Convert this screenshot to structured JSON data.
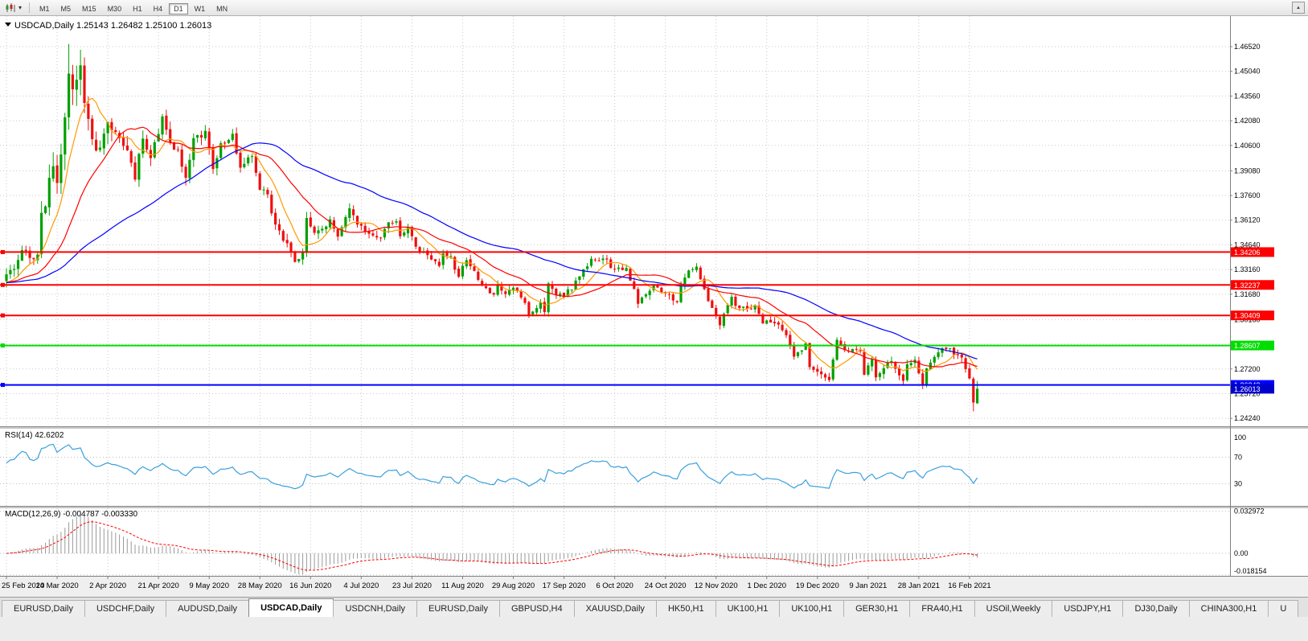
{
  "colors": {
    "up": "#00A000",
    "down": "#EE1010",
    "grid": "#C9C9C9",
    "rsi": "#3AA0DC",
    "macd_hist": "#9A9A9A",
    "macd_signal": "#FF0000",
    "hline_red": "#FF0000",
    "hline_green": "#00DD00",
    "hline_blue": "#0000FF",
    "current_price_tag": "#0000CC"
  },
  "toolbar": {
    "timeframes": [
      "M1",
      "M5",
      "M15",
      "M30",
      "H1",
      "H4",
      "D1",
      "W1",
      "MN"
    ],
    "active_timeframe": "D1"
  },
  "chart": {
    "header_text": "USDCAD,Daily 1.25143 1.26482 1.25100 1.26013",
    "symbol": "USDCAD",
    "timeframe": "Daily",
    "ohlc": {
      "open": "1.25143",
      "high": "1.26482",
      "low": "1.25100",
      "close": "1.26013"
    },
    "price_axis": [
      "1.46520",
      "1.45040",
      "1.43560",
      "1.42080",
      "1.40600",
      "1.39080",
      "1.37600",
      "1.36120",
      "1.34640",
      "1.33160",
      "1.31680",
      "1.30160",
      "1.28680",
      "1.27200",
      "1.25720",
      "1.24240"
    ],
    "hlines": [
      {
        "label": "1.34206",
        "value": 1.34206,
        "color_key": "hline_red"
      },
      {
        "label": "1.32237",
        "value": 1.32237,
        "color_key": "hline_red"
      },
      {
        "label": "1.30409",
        "value": 1.30409,
        "color_key": "hline_red"
      },
      {
        "label": "1.28607",
        "value": 1.28607,
        "color_key": "hline_green"
      },
      {
        "label": "1.26243",
        "value": 1.26243,
        "color_key": "hline_blue"
      }
    ],
    "current_price": {
      "label": "1.26013",
      "value": 1.26013
    },
    "dates": [
      "25 Feb 2020",
      "14 Mar 2020",
      "2 Apr 2020",
      "21 Apr 2020",
      "9 May 2020",
      "28 May 2020",
      "16 Jun 2020",
      "4 Jul 2020",
      "23 Jul 2020",
      "11 Aug 2020",
      "29 Aug 2020",
      "17 Sep 2020",
      "6 Oct 2020",
      "24 Oct 2020",
      "12 Nov 2020",
      "1 Dec 2020",
      "19 Dec 2020",
      "9 Jan 2021",
      "28 Jan 2021",
      "16 Feb 2021"
    ]
  },
  "rsi": {
    "label": "RSI(14) 42.6202",
    "period": 14,
    "value": 42.6202,
    "levels": [
      {
        "label": "100",
        "value": 100
      },
      {
        "label": "70",
        "value": 70
      },
      {
        "label": "30",
        "value": 30
      }
    ]
  },
  "macd": {
    "label": "MACD(12,26,9) -0.004787 -0.003330",
    "fast": 12,
    "slow": 26,
    "signal": 9,
    "value": -0.004787,
    "signal_value": -0.00333,
    "levels": [
      {
        "label": "0.032972",
        "value": 0.032972
      },
      {
        "label": "0.00",
        "value": 0
      },
      {
        "label": "-0.018154",
        "value": -0.018154
      }
    ]
  },
  "tabs": {
    "active_index": 3,
    "items": [
      "EURUSD,Daily",
      "USDCHF,Daily",
      "AUDUSD,Daily",
      "USDCAD,Daily",
      "USDCNH,Daily",
      "EURUSD,Daily",
      "GBPUSD,H4",
      "XAUUSD,Daily",
      "HK50,H1",
      "UK100,H1",
      "UK100,H1",
      "GER30,H1",
      "FRA40,H1",
      "USOil,Weekly",
      "USDJPY,H1",
      "DJ30,Daily",
      "CHINA300,H1",
      "U"
    ]
  },
  "chart_data": {
    "type": "candlestick",
    "symbol": "USDCAD",
    "timeframe": "Daily",
    "bars": 250,
    "pre_close": 1.3235,
    "close_keyframes": [
      [
        0,
        1.327
      ],
      [
        2,
        1.3315
      ],
      [
        4,
        1.3405
      ],
      [
        6,
        1.339
      ],
      [
        8,
        1.342
      ],
      [
        9,
        1.367
      ],
      [
        10,
        1.373
      ],
      [
        12,
        1.3925
      ],
      [
        13,
        1.38
      ],
      [
        14,
        1.399
      ],
      [
        15,
        1.4265
      ],
      [
        16,
        1.45
      ],
      [
        17,
        1.444
      ],
      [
        19,
        1.449
      ],
      [
        21,
        1.418
      ],
      [
        23,
        1.399
      ],
      [
        26,
        1.421
      ],
      [
        28,
        1.414
      ],
      [
        31,
        1.401
      ],
      [
        33,
        1.388
      ],
      [
        35,
        1.409
      ],
      [
        37,
        1.4
      ],
      [
        40,
        1.4215
      ],
      [
        42,
        1.4065
      ],
      [
        44,
        1.4035
      ],
      [
        46,
        1.388
      ],
      [
        48,
        1.409
      ],
      [
        51,
        1.414
      ],
      [
        53,
        1.3925
      ],
      [
        55,
        1.408
      ],
      [
        58,
        1.411
      ],
      [
        60,
        1.3925
      ],
      [
        63,
        1.3995
      ],
      [
        65,
        1.3785
      ],
      [
        67,
        1.377
      ],
      [
        69,
        1.357
      ],
      [
        71,
        1.3495
      ],
      [
        74,
        1.3375
      ],
      [
        76,
        1.341
      ],
      [
        77,
        1.3625
      ],
      [
        79,
        1.354
      ],
      [
        83,
        1.3605
      ],
      [
        85,
        1.351
      ],
      [
        88,
        1.3685
      ],
      [
        90,
        1.3575
      ],
      [
        93,
        1.3545
      ],
      [
        96,
        1.351
      ],
      [
        98,
        1.3595
      ],
      [
        100,
        1.361
      ],
      [
        101,
        1.351
      ],
      [
        103,
        1.358
      ],
      [
        105,
        1.345
      ],
      [
        107,
        1.3415
      ],
      [
        109,
        1.337
      ],
      [
        111,
        1.334
      ],
      [
        112,
        1.3415
      ],
      [
        114,
        1.3385
      ],
      [
        116,
        1.3265
      ],
      [
        118,
        1.3385
      ],
      [
        120,
        1.331
      ],
      [
        122,
        1.322
      ],
      [
        125,
        1.316
      ],
      [
        126,
        1.3225
      ],
      [
        128,
        1.3175
      ],
      [
        130,
        1.322
      ],
      [
        133,
        1.3105
      ],
      [
        134,
        1.304
      ],
      [
        137,
        1.3125
      ],
      [
        138,
        1.306
      ],
      [
        139,
        1.3225
      ],
      [
        141,
        1.3165
      ],
      [
        143,
        1.316
      ],
      [
        145,
        1.321
      ],
      [
        148,
        1.331
      ],
      [
        150,
        1.3385
      ],
      [
        154,
        1.3385
      ],
      [
        155,
        1.332
      ],
      [
        159,
        1.333
      ],
      [
        161,
        1.3195
      ],
      [
        162,
        1.312
      ],
      [
        166,
        1.3215
      ],
      [
        168,
        1.3185
      ],
      [
        172,
        1.3125
      ],
      [
        173,
        1.3205
      ],
      [
        175,
        1.332
      ],
      [
        177,
        1.332
      ],
      [
        180,
        1.3125
      ],
      [
        183,
        1.299
      ],
      [
        186,
        1.314
      ],
      [
        188,
        1.3075
      ],
      [
        192,
        1.3095
      ],
      [
        194,
        1.3005
      ],
      [
        198,
        1.2995
      ],
      [
        200,
        1.293
      ],
      [
        202,
        1.278
      ],
      [
        205,
        1.287
      ],
      [
        206,
        1.272
      ],
      [
        209,
        1.2695
      ],
      [
        211,
        1.2665
      ],
      [
        213,
        1.2905
      ],
      [
        215,
        1.283
      ],
      [
        219,
        1.283
      ],
      [
        220,
        1.27
      ],
      [
        222,
        1.278
      ],
      [
        223,
        1.267
      ],
      [
        227,
        1.278
      ],
      [
        230,
        1.2635
      ],
      [
        231,
        1.2735
      ],
      [
        233,
        1.2765
      ],
      [
        235,
        1.2625
      ],
      [
        236,
        1.2735
      ],
      [
        239,
        1.282
      ],
      [
        241,
        1.2845
      ],
      [
        243,
        1.2815
      ],
      [
        245,
        1.279
      ],
      [
        246,
        1.272
      ],
      [
        247,
        1.266
      ],
      [
        248,
        1.2519
      ],
      [
        249,
        1.26013
      ]
    ],
    "volatility_keyframes": [
      [
        0,
        0.009
      ],
      [
        8,
        0.014
      ],
      [
        16,
        0.024
      ],
      [
        22,
        0.018
      ],
      [
        30,
        0.012
      ],
      [
        45,
        0.01
      ],
      [
        60,
        0.009
      ],
      [
        80,
        0.007
      ],
      [
        100,
        0.006
      ],
      [
        130,
        0.0055
      ],
      [
        160,
        0.006
      ],
      [
        190,
        0.0055
      ],
      [
        220,
        0.006
      ],
      [
        249,
        0.006
      ]
    ],
    "overrides": [
      {
        "i": 16,
        "h": 1.4668
      },
      {
        "i": 248,
        "o": 1.2662,
        "h": 1.2672,
        "l": 1.2466,
        "c": 1.2519
      },
      {
        "i": 249,
        "o": 1.25143,
        "h": 1.26482,
        "l": 1.251,
        "c": 1.26013
      }
    ],
    "moving_averages": [
      {
        "period": 8,
        "color": "#FF9900"
      },
      {
        "period": 21,
        "color": "#FF0000"
      },
      {
        "period": 55,
        "color": "#0000FF"
      }
    ]
  }
}
